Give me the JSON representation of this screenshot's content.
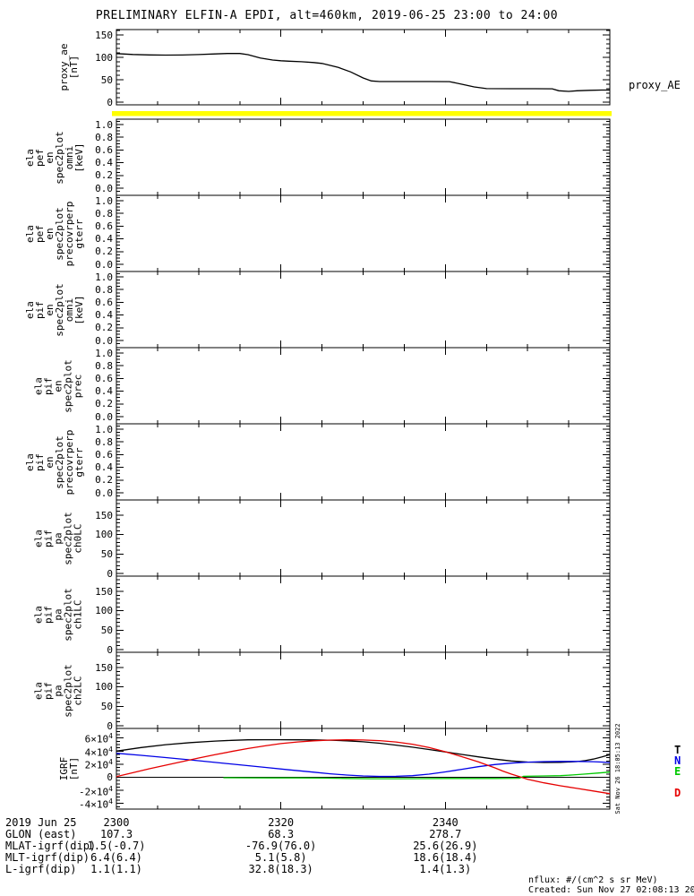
{
  "title": "PRELIMINARY ELFIN-A EPDI, alt=460km, 2019-06-25 23:00 to 24:00",
  "right_label": "proxy_AE",
  "side_timestamp": "Sat Nov 26 18:05:13 2022",
  "footer": {
    "units_note": "nflux: #/(cm^2 s sr MeV)",
    "created": "Created: Sun Nov 27 02:08:13 2022"
  },
  "colors": {
    "highlight_bar": "#FFFF00",
    "axis": "#000000",
    "trace_black": "#000000",
    "trace_blue": "#0000E6",
    "trace_green": "#00C800",
    "trace_red": "#E60000"
  },
  "legend": [
    {
      "label": "T",
      "color": "#000000"
    },
    {
      "label": "N",
      "color": "#0000E6"
    },
    {
      "label": "E",
      "color": "#00C800"
    },
    {
      "label": "D",
      "color": "#E60000"
    }
  ],
  "bottom_rows": {
    "row_labels": [
      "2019 Jun 25",
      "GLON (east)",
      "MLAT-igrf(dip)",
      "MLT-igrf(dip)",
      "L-igrf(dip)"
    ],
    "columns": [
      {
        "x_label": "2300",
        "values": [
          "107.3",
          "1.5(-0.7)",
          "6.4(6.4)",
          "1.1(1.1)"
        ]
      },
      {
        "x_label": "2320",
        "values": [
          "68.3",
          "-76.9(76.0)",
          "5.1(5.8)",
          "32.8(18.3)"
        ]
      },
      {
        "x_label": "2340",
        "values": [
          "278.7",
          "25.6(26.9)",
          "18.6(18.4)",
          "1.4(1.3)"
        ]
      }
    ]
  },
  "chart_data": [
    {
      "id": "proxy_ae",
      "type": "line",
      "label_lines": [
        "proxy_ae",
        "[nT]"
      ],
      "ylabel": "proxy_ae [nT]",
      "ylim": [
        0,
        150
      ],
      "yticks": [
        {
          "v": 150,
          "label": "150"
        },
        {
          "v": 100,
          "label": "100"
        },
        {
          "v": 50,
          "label": "50"
        },
        {
          "v": 0,
          "label": "0"
        }
      ],
      "series": [
        {
          "name": "proxy_AE",
          "color": "#000000",
          "points": [
            [
              0,
              108.5
            ],
            [
              2,
              106.5
            ],
            [
              4,
              105.4
            ],
            [
              6,
              105.1
            ],
            [
              8,
              105.2
            ],
            [
              10,
              106.2
            ],
            [
              12,
              107.6
            ],
            [
              13.5,
              108.6
            ],
            [
              15,
              108.6
            ],
            [
              16,
              106
            ],
            [
              17.5,
              98.5
            ],
            [
              19,
              94
            ],
            [
              20,
              92.5
            ],
            [
              21,
              91.5
            ],
            [
              22.5,
              90.2
            ],
            [
              24,
              88.5
            ],
            [
              25,
              86.5
            ],
            [
              26,
              82
            ],
            [
              27,
              77.5
            ],
            [
              28.5,
              67.5
            ],
            [
              30,
              54
            ],
            [
              31,
              47.5
            ],
            [
              32,
              46
            ],
            [
              35,
              46
            ],
            [
              38,
              46
            ],
            [
              40.5,
              45.8
            ],
            [
              42,
              40
            ],
            [
              43.5,
              34
            ],
            [
              45,
              30.2
            ],
            [
              48,
              30
            ],
            [
              51,
              30
            ],
            [
              53,
              29.8
            ],
            [
              53.8,
              25.5
            ],
            [
              55,
              24
            ],
            [
              56,
              25.5
            ],
            [
              57.5,
              26.5
            ],
            [
              59,
              27
            ],
            [
              60,
              27
            ]
          ]
        }
      ]
    },
    {
      "id": "ela_pef_en_spec2plot_omni",
      "type": "empty",
      "label_lines": [
        "ela",
        "pef",
        "en",
        "spec2plot",
        "omni",
        "[keV]"
      ],
      "ylim": [
        0,
        1
      ],
      "yticks": [
        {
          "v": 1.0,
          "label": "1.0"
        },
        {
          "v": 0.8,
          "label": "0.8"
        },
        {
          "v": 0.6,
          "label": "0.6"
        },
        {
          "v": 0.4,
          "label": "0.4"
        },
        {
          "v": 0.2,
          "label": "0.2"
        },
        {
          "v": 0.0,
          "label": "0.0"
        }
      ]
    },
    {
      "id": "ela_pef_en_spec2plot_precovrperp_gterr",
      "type": "empty",
      "label_lines": [
        "ela",
        "pef",
        "en",
        "spec2plot",
        "precovrperp",
        "gterr"
      ],
      "ylim": [
        0,
        1
      ],
      "yticks": [
        {
          "v": 1.0,
          "label": "1.0"
        },
        {
          "v": 0.8,
          "label": "0.8"
        },
        {
          "v": 0.6,
          "label": "0.6"
        },
        {
          "v": 0.4,
          "label": "0.4"
        },
        {
          "v": 0.2,
          "label": "0.2"
        },
        {
          "v": 0.0,
          "label": "0.0"
        }
      ]
    },
    {
      "id": "ela_pif_en_spec2plot_omni",
      "type": "empty",
      "label_lines": [
        "ela",
        "pif",
        "en",
        "spec2plot",
        "omni",
        "[keV]"
      ],
      "ylim": [
        0,
        1
      ],
      "yticks": [
        {
          "v": 1.0,
          "label": "1.0"
        },
        {
          "v": 0.8,
          "label": "0.8"
        },
        {
          "v": 0.6,
          "label": "0.6"
        },
        {
          "v": 0.4,
          "label": "0.4"
        },
        {
          "v": 0.2,
          "label": "0.2"
        },
        {
          "v": 0.0,
          "label": "0.0"
        }
      ]
    },
    {
      "id": "ela_pif_en_spec2plot_prec",
      "type": "empty",
      "label_lines": [
        "ela",
        "pif",
        "en",
        "spec2plot",
        "prec"
      ],
      "ylim": [
        0,
        1
      ],
      "yticks": [
        {
          "v": 1.0,
          "label": "1.0"
        },
        {
          "v": 0.8,
          "label": "0.8"
        },
        {
          "v": 0.6,
          "label": "0.6"
        },
        {
          "v": 0.4,
          "label": "0.4"
        },
        {
          "v": 0.2,
          "label": "0.2"
        },
        {
          "v": 0.0,
          "label": "0.0"
        }
      ]
    },
    {
      "id": "ela_pif_en_spec2plot_precovrperp_gterr",
      "type": "empty",
      "label_lines": [
        "ela",
        "pif",
        "en",
        "spec2plot",
        "precovrperp",
        "gterr"
      ],
      "ylim": [
        0,
        1
      ],
      "yticks": [
        {
          "v": 1.0,
          "label": "1.0"
        },
        {
          "v": 0.8,
          "label": "0.8"
        },
        {
          "v": 0.6,
          "label": "0.6"
        },
        {
          "v": 0.4,
          "label": "0.4"
        },
        {
          "v": 0.2,
          "label": "0.2"
        },
        {
          "v": 0.0,
          "label": "0.0"
        }
      ]
    },
    {
      "id": "ela_pif_pa_spec2plot_ch0LC",
      "type": "empty",
      "label_lines": [
        "ela",
        "pif",
        "pa",
        "spec2plot",
        "ch0LC"
      ],
      "ylim": [
        0,
        150
      ],
      "yticks": [
        {
          "v": 150,
          "label": "150"
        },
        {
          "v": 100,
          "label": "100"
        },
        {
          "v": 50,
          "label": "50"
        },
        {
          "v": 0,
          "label": "0"
        }
      ]
    },
    {
      "id": "ela_pif_pa_spec2plot_ch1LC",
      "type": "empty",
      "label_lines": [
        "ela",
        "pif",
        "pa",
        "spec2plot",
        "ch1LC"
      ],
      "ylim": [
        0,
        150
      ],
      "yticks": [
        {
          "v": 150,
          "label": "150"
        },
        {
          "v": 100,
          "label": "100"
        },
        {
          "v": 50,
          "label": "50"
        },
        {
          "v": 0,
          "label": "0"
        }
      ]
    },
    {
      "id": "ela_pif_pa_spec2plot_ch2LC",
      "type": "empty",
      "label_lines": [
        "ela",
        "pif",
        "pa",
        "spec2plot",
        "ch2LC"
      ],
      "ylim": [
        0,
        150
      ],
      "yticks": [
        {
          "v": 150,
          "label": "150"
        },
        {
          "v": 100,
          "label": "100"
        },
        {
          "v": 50,
          "label": "50"
        },
        {
          "v": 0,
          "label": "0"
        }
      ]
    },
    {
      "id": "igrf",
      "type": "line",
      "zero_line": true,
      "label_lines": [
        "IGRF",
        "[nT]"
      ],
      "ylabel": "IGRF [nT]",
      "ylim": [
        -40000,
        60000
      ],
      "yticks": [
        {
          "v": 60000,
          "label": "6×10^4"
        },
        {
          "v": 40000,
          "label": "4×10^4"
        },
        {
          "v": 20000,
          "label": "2×10^4"
        },
        {
          "v": 0,
          "label": "0"
        },
        {
          "v": -20000,
          "label": "-2×10^4"
        },
        {
          "v": -40000,
          "label": "-4×10^4"
        }
      ],
      "series": [
        {
          "name": "T",
          "color": "#000000",
          "points": [
            [
              0,
              40000
            ],
            [
              3,
              45500
            ],
            [
              6,
              49800
            ],
            [
              9,
              53000
            ],
            [
              12,
              55300
            ],
            [
              14,
              56500
            ],
            [
              16,
              57200
            ],
            [
              18,
              57400
            ],
            [
              20,
              57400
            ],
            [
              22,
              57300
            ],
            [
              24,
              57100
            ],
            [
              26,
              56700
            ],
            [
              28,
              55800
            ],
            [
              30,
              54200
            ],
            [
              32,
              52000
            ],
            [
              34,
              49200
            ],
            [
              36,
              46000
            ],
            [
              38,
              42500
            ],
            [
              40,
              38800
            ],
            [
              42,
              35000
            ],
            [
              44,
              31200
            ],
            [
              46,
              27800
            ],
            [
              48,
              25000
            ],
            [
              50,
              23300
            ],
            [
              52,
              22600
            ],
            [
              54,
              22800
            ],
            [
              56,
              24000
            ],
            [
              57,
              25500
            ],
            [
              58,
              27800
            ],
            [
              59,
              31000
            ],
            [
              60,
              34500
            ]
          ]
        },
        {
          "name": "N",
          "color": "#0000E6",
          "points": [
            [
              0,
              36700
            ],
            [
              3,
              33600
            ],
            [
              6,
              30200
            ],
            [
              9,
              26600
            ],
            [
              12,
              22800
            ],
            [
              15,
              19000
            ],
            [
              18,
              15200
            ],
            [
              21,
              11400
            ],
            [
              24,
              7800
            ],
            [
              26,
              5400
            ],
            [
              28,
              3400
            ],
            [
              30,
              2000
            ],
            [
              32,
              1400
            ],
            [
              34,
              1500
            ],
            [
              36,
              2500
            ],
            [
              38,
              4800
            ],
            [
              40,
              8200
            ],
            [
              42,
              12200
            ],
            [
              44,
              16200
            ],
            [
              46,
              19400
            ],
            [
              48,
              21700
            ],
            [
              50,
              23200
            ],
            [
              52,
              24000
            ],
            [
              54,
              24300
            ],
            [
              56,
              24300
            ],
            [
              58,
              23900
            ],
            [
              59,
              23300
            ],
            [
              60,
              22400
            ]
          ]
        },
        {
          "name": "E",
          "color": "#00C800",
          "points": [
            [
              13,
              -700
            ],
            [
              16,
              -800
            ],
            [
              19,
              -900
            ],
            [
              22,
              -1000
            ],
            [
              25,
              -1300
            ],
            [
              28,
              -1800
            ],
            [
              31,
              -2200
            ],
            [
              34,
              -2200
            ],
            [
              37,
              -2000
            ],
            [
              40,
              -1800
            ],
            [
              43,
              -1800
            ],
            [
              46,
              -1800
            ],
            [
              49,
              -1500
            ],
            [
              49.5,
              1500
            ],
            [
              52,
              2000
            ],
            [
              54,
              2500
            ],
            [
              55.5,
              3500
            ],
            [
              57,
              5000
            ],
            [
              58.5,
              6500
            ],
            [
              60,
              8000
            ]
          ]
        },
        {
          "name": "D",
          "color": "#E60000",
          "points": [
            [
              0,
              1000
            ],
            [
              2,
              7000
            ],
            [
              4,
              13000
            ],
            [
              6,
              18500
            ],
            [
              8,
              24000
            ],
            [
              10,
              29500
            ],
            [
              12,
              34500
            ],
            [
              14,
              39500
            ],
            [
              16,
              44000
            ],
            [
              18,
              48000
            ],
            [
              20,
              51500
            ],
            [
              22,
              54000
            ],
            [
              24,
              55800
            ],
            [
              26,
              56800
            ],
            [
              28,
              57200
            ],
            [
              30,
              57000
            ],
            [
              32,
              56000
            ],
            [
              34,
              54000
            ],
            [
              36,
              50500
            ],
            [
              38,
              45500
            ],
            [
              40,
              39000
            ],
            [
              42,
              31500
            ],
            [
              44,
              23500
            ],
            [
              45,
              19000
            ],
            [
              46,
              14500
            ],
            [
              47,
              9500
            ],
            [
              48,
              5000
            ],
            [
              49,
              1000
            ],
            [
              50,
              -3000
            ],
            [
              52,
              -8500
            ],
            [
              54,
              -13000
            ],
            [
              56,
              -17000
            ],
            [
              58,
              -21000
            ],
            [
              60,
              -25000
            ]
          ]
        }
      ]
    }
  ]
}
